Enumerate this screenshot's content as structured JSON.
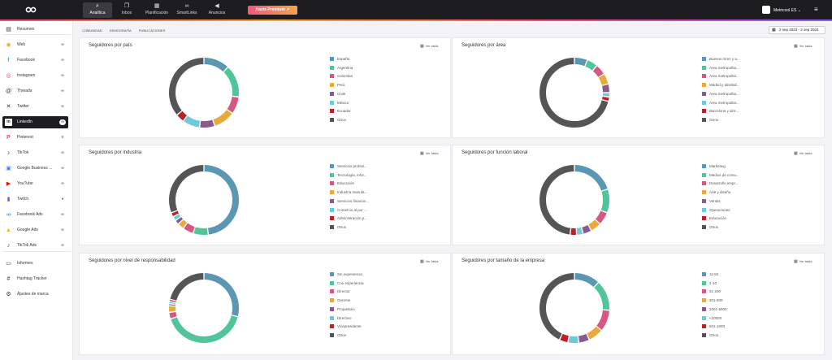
{
  "colors": [
    "#5b96b3",
    "#52c49a",
    "#d6577f",
    "#e9aa3c",
    "#8a5a8e",
    "#71c9d6",
    "#b8232b",
    "#555555"
  ],
  "topnav": {
    "items": [
      {
        "label": "Analítica",
        "icon": "search-icon",
        "active": true
      },
      {
        "label": "Inbox",
        "icon": "chat-icon",
        "active": false
      },
      {
        "label": "Planificación",
        "icon": "calendar-icon",
        "active": false
      },
      {
        "label": "SmartLinks",
        "icon": "link-icon",
        "active": false
      },
      {
        "label": "Anuncios",
        "icon": "megaphone-icon",
        "active": false
      }
    ],
    "upgrade_label": "Hazte Premium",
    "account_label": "Metricool ES"
  },
  "sidebar": {
    "items": [
      {
        "label": "Resumen",
        "icon": "clipboard-icon",
        "badge": ""
      },
      {
        "label": "Web",
        "icon": "rss-icon",
        "badge": "∞"
      },
      {
        "label": "Facebook",
        "icon": "facebook-icon",
        "badge": "∞"
      },
      {
        "label": "Instagram",
        "icon": "instagram-icon",
        "badge": "∞"
      },
      {
        "label": "Threads",
        "icon": "threads-icon",
        "badge": "∞"
      },
      {
        "label": "Twitter",
        "icon": "x-icon",
        "badge": "∞"
      },
      {
        "label": "LinkedIn",
        "icon": "linkedin-icon",
        "badge": "∞"
      },
      {
        "label": "Pinterest",
        "icon": "pinterest-icon",
        "badge": "≡"
      },
      {
        "label": "TikTok",
        "icon": "tiktok-icon",
        "badge": "∞"
      },
      {
        "label": "Google Business ...",
        "icon": "google-business-icon",
        "badge": "∞"
      },
      {
        "label": "YouTube",
        "icon": "youtube-icon",
        "badge": "∞"
      },
      {
        "label": "Twitch",
        "icon": "twitch-icon",
        "badge": "●"
      },
      {
        "label": "Facebook Ads",
        "icon": "meta-icon",
        "badge": "∞"
      },
      {
        "label": "Google Ads",
        "icon": "google-ads-icon",
        "badge": "∞"
      },
      {
        "label": "TikTok Ads",
        "icon": "tiktok-icon",
        "badge": "∞"
      },
      {
        "label": "Informes",
        "icon": "document-icon",
        "badge": ""
      },
      {
        "label": "Hashtag Tracker",
        "icon": "hashtag-icon",
        "badge": ""
      },
      {
        "label": "Ajustes de marca",
        "icon": "gear-icon",
        "badge": ""
      }
    ],
    "active_index": 6
  },
  "subtabs": [
    "COMUNIDAD",
    "DEMOGRAFÍA",
    "PUBLICACIONES"
  ],
  "date_range": "2 sep 2023 - 2 sep 2024",
  "ver_tabla_label": "Ver tabla",
  "cards": [
    {
      "title": "Seguidores por país",
      "legend": [
        "España",
        "Argentina",
        "Colombia",
        "Perú",
        "Chile",
        "México",
        "Ecuador",
        "Otros"
      ],
      "values": [
        12,
        15,
        8,
        10,
        7,
        8,
        4,
        36
      ]
    },
    {
      "title": "Seguidores por área",
      "legend": [
        "Buenos Aires y a...",
        "Área metropolita...",
        "Área metropolita...",
        "Madrid y alreded...",
        "Área metropolita...",
        "Área metropolita...",
        "Barcelona y alre...",
        "Otros"
      ],
      "values": [
        6,
        5,
        5,
        5,
        4,
        2,
        2,
        71
      ]
    },
    {
      "title": "Seguidores por industria",
      "legend": [
        "Servicios profesi...",
        "Tecnología, infor...",
        "Educación",
        "Industria manufa...",
        "Servicios financie...",
        "Comercio al por ...",
        "Administración p...",
        "Otros"
      ],
      "values": [
        48,
        7,
        5,
        3,
        2,
        2,
        2,
        31
      ]
    },
    {
      "title": "Seguidores por función laboral",
      "legend": [
        "Marketing",
        "Medios de comu...",
        "Desarrollo empr...",
        "Arte y diseño",
        "Ventas",
        "Operaciones",
        "Educación",
        "Otros"
      ],
      "values": [
        20,
        11,
        6,
        5,
        4,
        3,
        3,
        48
      ]
    },
    {
      "title": "Seguidores por nivel de responsabilidad",
      "legend": [
        "Sin experiencia",
        "Con experiencia",
        "Director",
        "Gerente",
        "Propietario",
        "Directivo",
        "Vicepresidente",
        "Otros"
      ],
      "values": [
        29,
        41,
        3,
        3,
        1,
        1,
        1,
        21
      ]
    },
    {
      "title": "Seguidores por tamaño de la empresa",
      "legend": [
        "11-50",
        "2-10",
        "51-200",
        "201-500",
        "1001-5000",
        "<10000",
        "501-1000",
        "Otros"
      ],
      "values": [
        12,
        14,
        10,
        7,
        5,
        5,
        4,
        43
      ]
    }
  ]
}
